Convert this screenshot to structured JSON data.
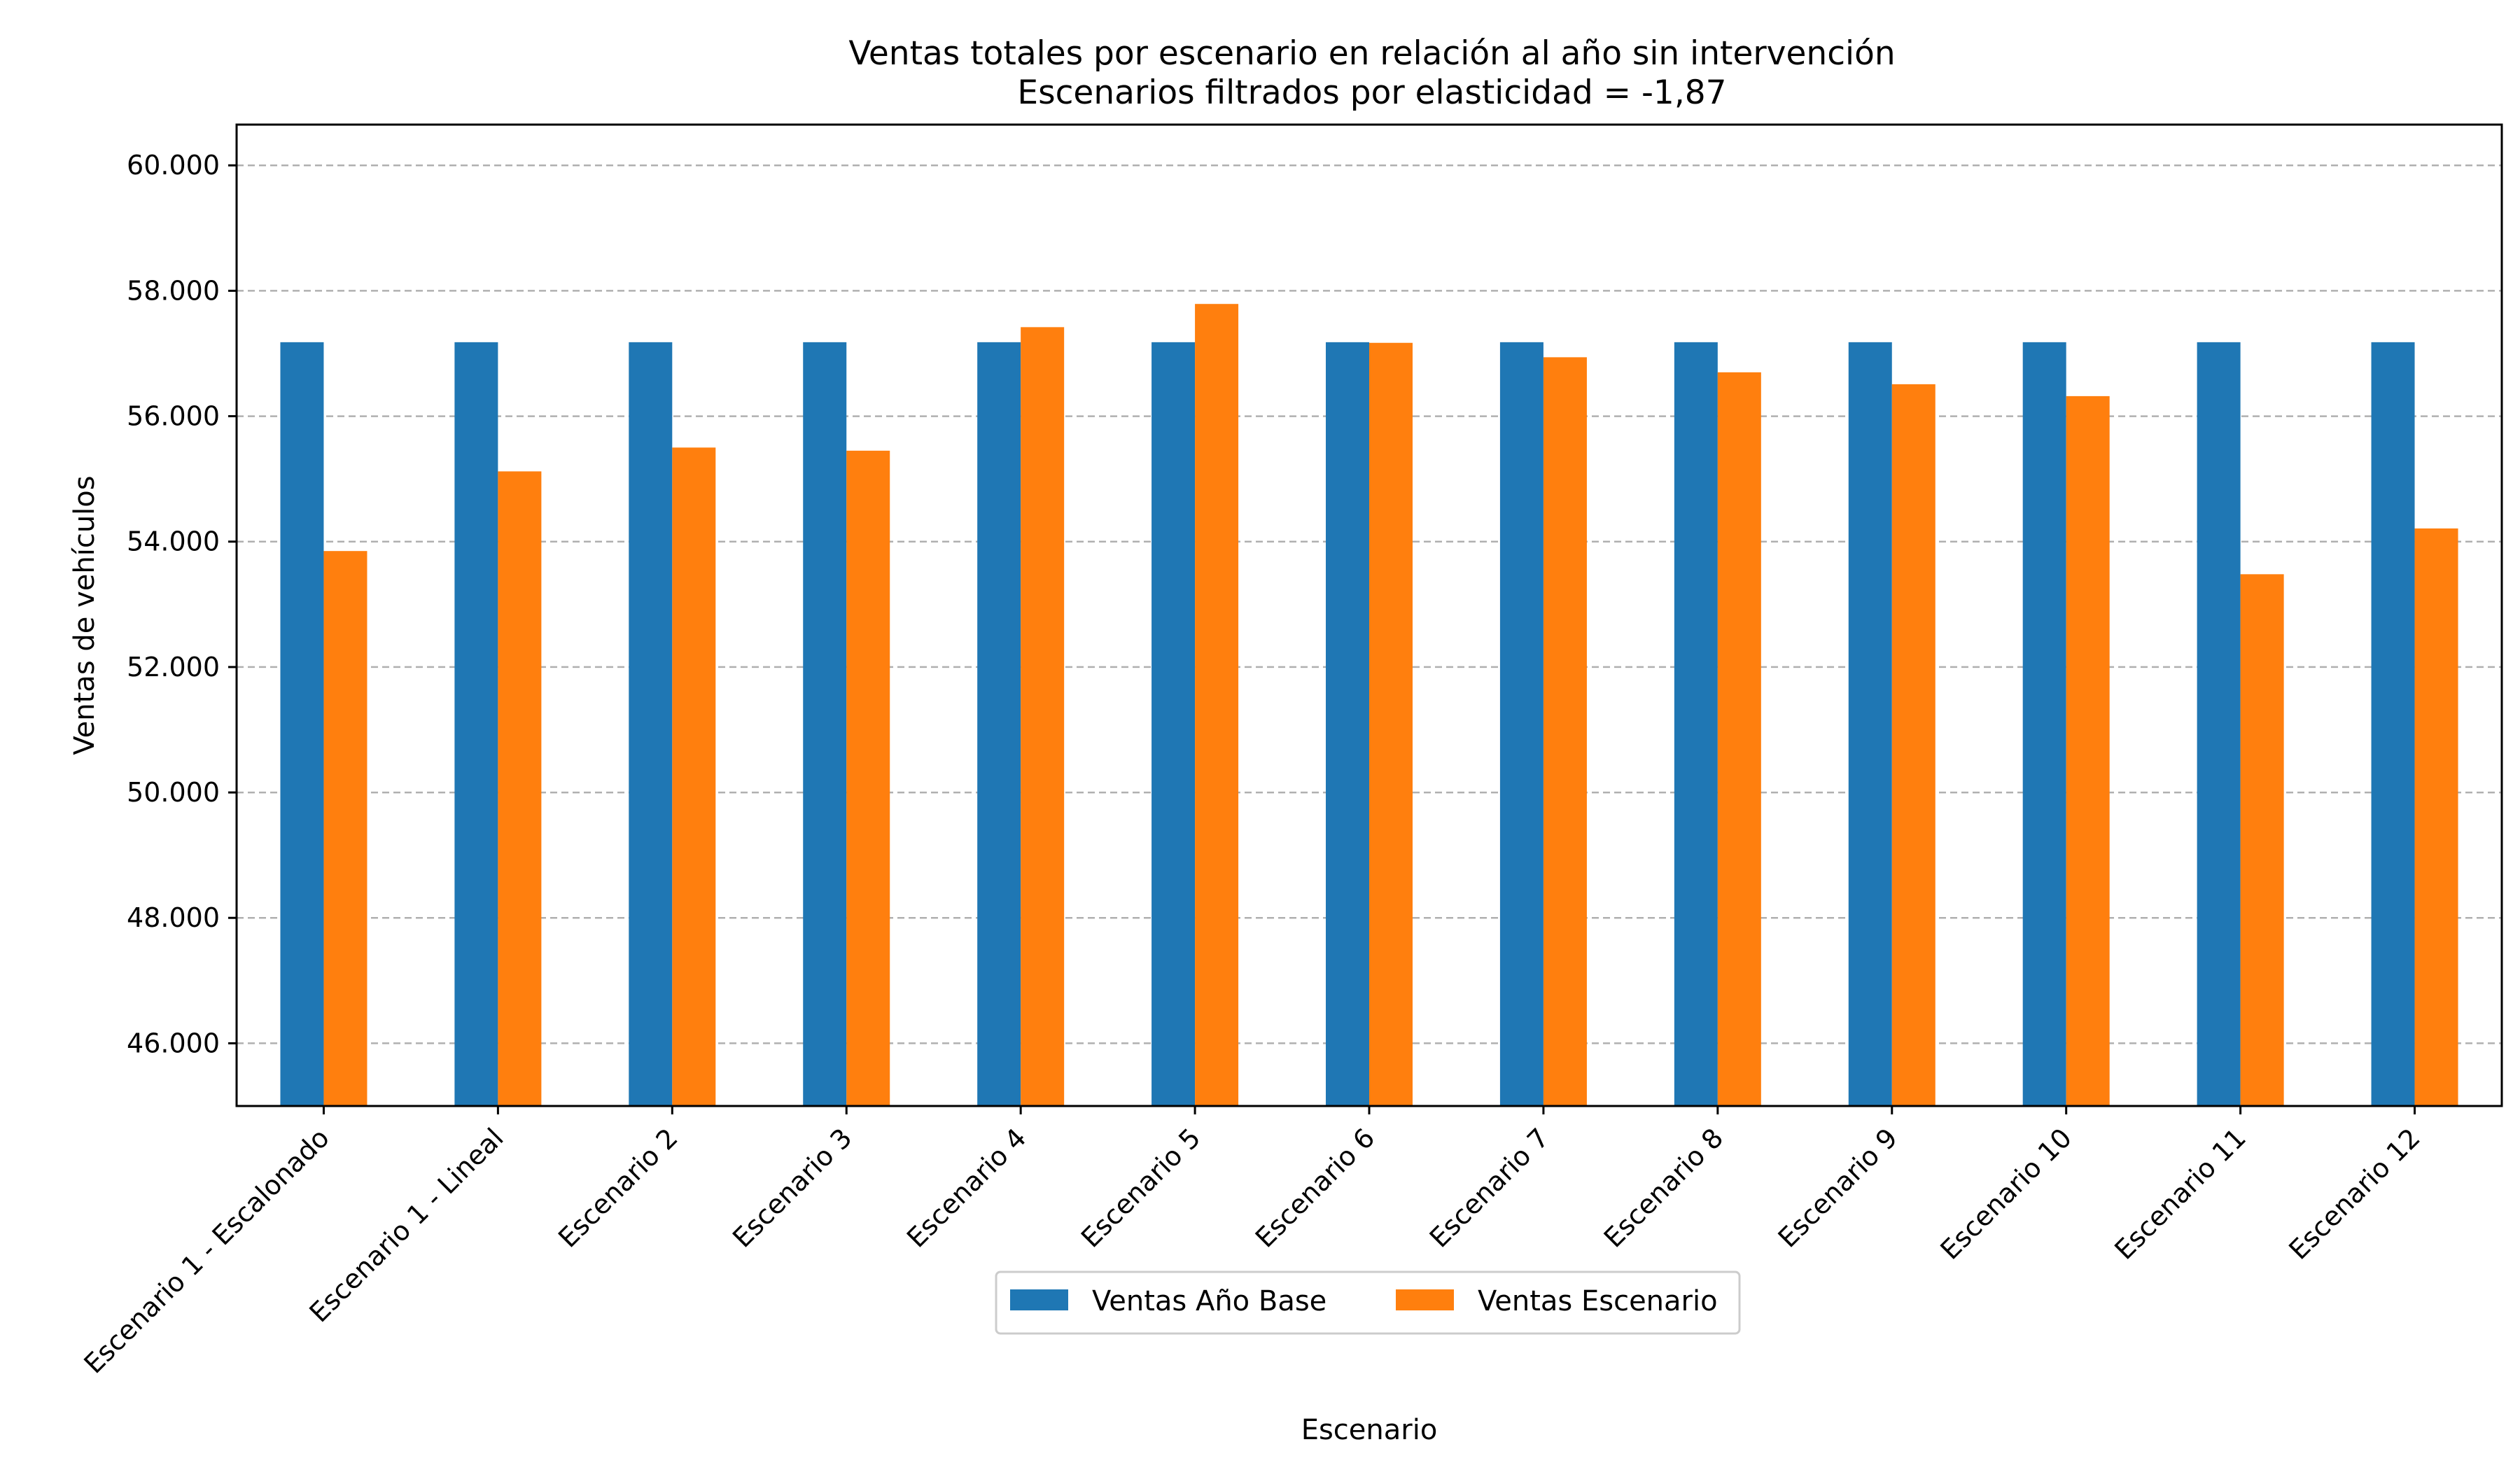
{
  "chart_data": {
    "type": "bar",
    "title": "Ventas totales por escenario en relación al año sin intervención",
    "subtitle": "Escenarios filtrados por elasticidad = -1,87",
    "xlabel": "Escenario",
    "ylabel": "Ventas de vehículos",
    "ylim": [
      45000,
      60650
    ],
    "yticks": [
      {
        "value": 46000,
        "label": "46.000"
      },
      {
        "value": 48000,
        "label": "48.000"
      },
      {
        "value": 50000,
        "label": "50.000"
      },
      {
        "value": 52000,
        "label": "52.000"
      },
      {
        "value": 54000,
        "label": "54.000"
      },
      {
        "value": 56000,
        "label": "56.000"
      },
      {
        "value": 58000,
        "label": "58.000"
      },
      {
        "value": 60000,
        "label": "60.000"
      }
    ],
    "grid": "y, dashed",
    "legend_position": "bottom-center",
    "categories": [
      "Escenario 1 - Escalonado",
      "Escenario 1 - Lineal",
      "Escenario 2",
      "Escenario 3",
      "Escenario 4",
      "Escenario 5",
      "Escenario 6",
      "Escenario 7",
      "Escenario 8",
      "Escenario 9",
      "Escenario 10",
      "Escenario 11",
      "Escenario 12"
    ],
    "series": [
      {
        "name": "Ventas Año Base",
        "color": "#1f77b4",
        "values": [
          57180,
          57180,
          57180,
          57180,
          57180,
          57180,
          57180,
          57180,
          57180,
          57180,
          57180,
          57180,
          57180
        ]
      },
      {
        "name": "Ventas Escenario",
        "color": "#ff7f0e",
        "values": [
          53850,
          55120,
          55500,
          55450,
          57420,
          57790,
          57170,
          56940,
          56700,
          56510,
          56320,
          53480,
          54210
        ]
      }
    ]
  }
}
